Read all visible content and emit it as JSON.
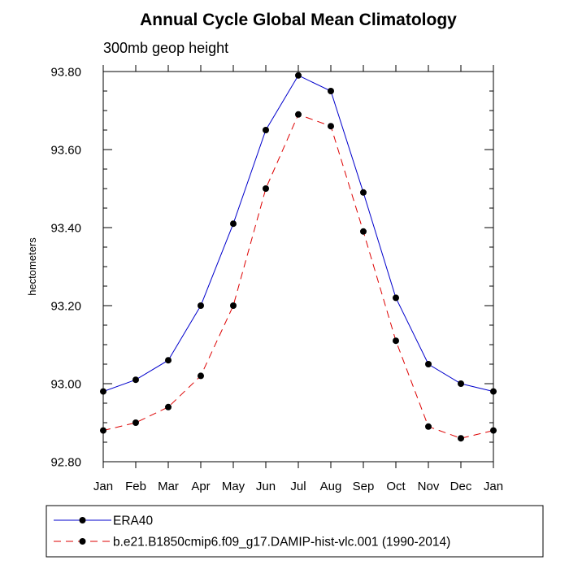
{
  "chart_data": {
    "type": "line",
    "title": "Annual Cycle Global Mean Climatology",
    "subtitle": "300mb geop height",
    "xlabel": "",
    "ylabel": "hectometers",
    "categories": [
      "Jan",
      "Feb",
      "Mar",
      "Apr",
      "May",
      "Jun",
      "Jul",
      "Aug",
      "Sep",
      "Oct",
      "Nov",
      "Dec",
      "Jan"
    ],
    "ylim": [
      92.8,
      93.8
    ],
    "yticks": [
      92.8,
      93.0,
      93.2,
      93.4,
      93.6,
      93.8
    ],
    "ytick_labels": [
      "92.80",
      "93.00",
      "93.20",
      "93.40",
      "93.60",
      "93.80"
    ],
    "grid": false,
    "legend_position": "bottom",
    "series": [
      {
        "name": "ERA40",
        "color": "#0000cc",
        "dash": "solid",
        "marker": "filled-circle",
        "values": [
          92.98,
          93.01,
          93.06,
          93.2,
          93.41,
          93.65,
          93.79,
          93.75,
          93.49,
          93.22,
          93.05,
          93.0,
          92.98
        ]
      },
      {
        "name": "b.e21.B1850cmip6.f09_g17.DAMIP-hist-vlc.001 (1990-2014)",
        "color": "#dd0000",
        "dash": "dashed",
        "marker": "filled-circle",
        "values": [
          92.88,
          92.9,
          92.94,
          93.02,
          93.2,
          93.5,
          93.69,
          93.66,
          93.39,
          93.11,
          92.89,
          92.86,
          92.88
        ]
      }
    ]
  }
}
